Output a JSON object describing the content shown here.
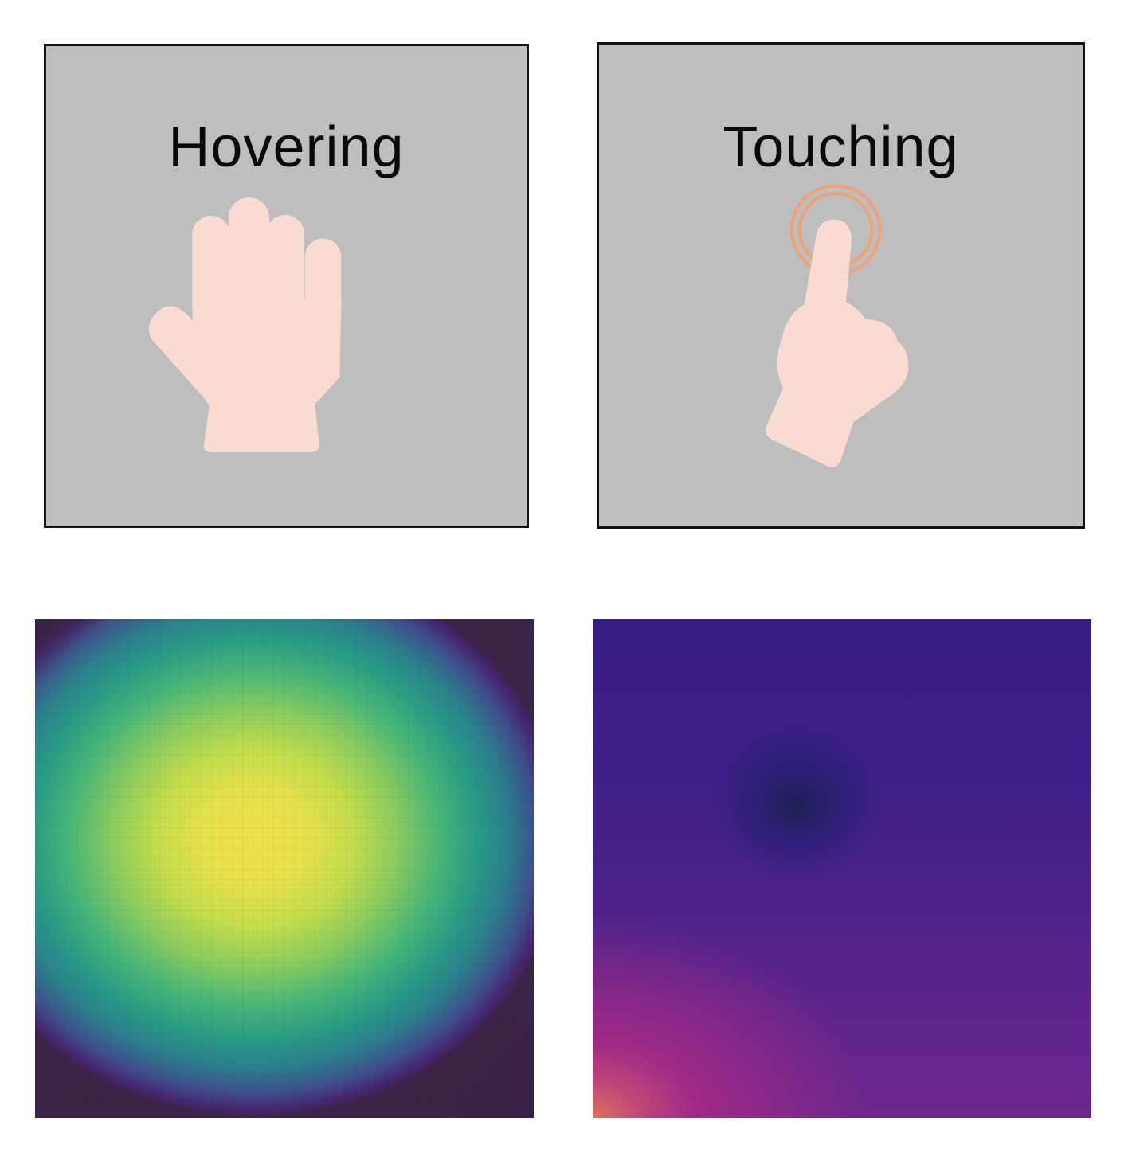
{
  "panels": {
    "hovering": {
      "title": "Hovering",
      "icon": "open-hand-icon",
      "background": "#bebebe"
    },
    "touching": {
      "title": "Touching",
      "icon": "finger-touch-icon",
      "background": "#bebebe"
    }
  },
  "colors": {
    "hand": "#f9dbd1",
    "touch_ring": "#f0a274",
    "border": "#111111"
  },
  "heatmaps": {
    "hovering": {
      "colormap": "viridis",
      "peak_color": "#efe049",
      "low_color": "#3b2446"
    },
    "touching": {
      "colormap": "plasma",
      "dark_spot_color": "#1c2154",
      "corner_color": "#e0715b"
    }
  }
}
